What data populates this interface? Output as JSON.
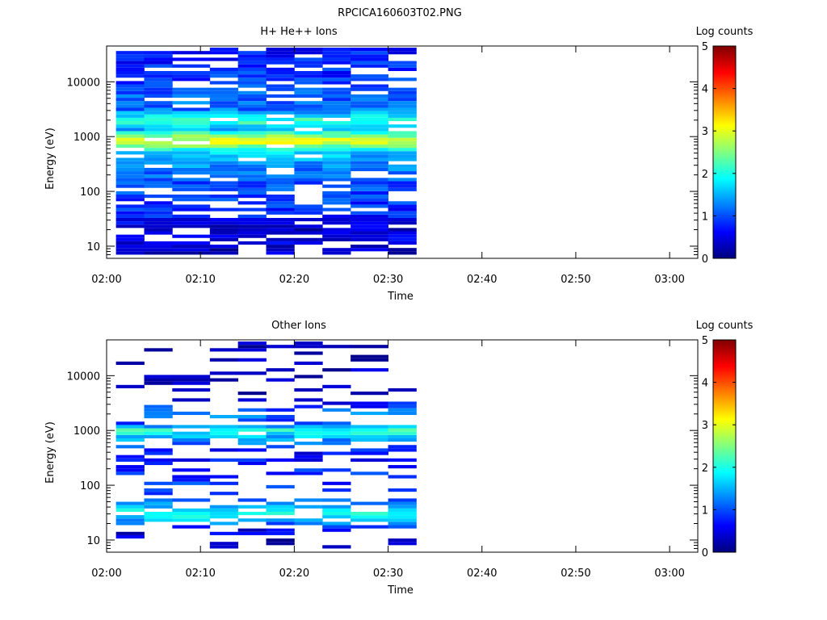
{
  "figure_title": "RPCICA160603T02.PNG",
  "chart_data": [
    {
      "type": "heatmap",
      "title": "H+ He++ Ions",
      "xlabel": "Time",
      "ylabel": "Energy (eV)",
      "x_ticks": [
        "02:00",
        "02:10",
        "02:20",
        "02:30",
        "02:40",
        "02:50",
        "03:00"
      ],
      "y_ticks": [
        "10",
        "100",
        "1000",
        "10000"
      ],
      "y_scale": "log",
      "xlim": [
        "02:00",
        "03:03"
      ],
      "ylim": [
        6,
        45000
      ],
      "colorbar": {
        "label": "Log counts",
        "ticks": [
          "0",
          "1",
          "2",
          "3",
          "4",
          "5"
        ],
        "range": [
          0,
          5
        ]
      },
      "colormap": [
        "#00007f",
        "#0000ff",
        "#0080ff",
        "#00ffff",
        "#80ff80",
        "#ffff00",
        "#ff8000",
        "#ff0000",
        "#7f0000"
      ],
      "time_bins": [
        "02:01",
        "02:04",
        "02:07",
        "02:11",
        "02:14",
        "02:17",
        "02:20",
        "02:23",
        "02:26",
        "02:30"
      ],
      "data_end": "02:33",
      "profile": [
        {
          "e": 8,
          "v": 0.3
        },
        {
          "e": 12,
          "v": 0.5
        },
        {
          "e": 20,
          "v": 0.4
        },
        {
          "e": 40,
          "v": 0.8
        },
        {
          "e": 80,
          "v": 0.9
        },
        {
          "e": 200,
          "v": 1.1
        },
        {
          "e": 500,
          "v": 1.6
        },
        {
          "e": 800,
          "v": 3.0
        },
        {
          "e": 1000,
          "v": 2.6
        },
        {
          "e": 1400,
          "v": 1.4
        },
        {
          "e": 1900,
          "v": 2.2
        },
        {
          "e": 3000,
          "v": 1.2
        },
        {
          "e": 10000,
          "v": 0.9
        },
        {
          "e": 40000,
          "v": 0.7
        }
      ],
      "gap_rate": 0.16
    },
    {
      "type": "heatmap",
      "title": "Other Ions",
      "xlabel": "Time",
      "ylabel": "Energy (eV)",
      "x_ticks": [
        "02:00",
        "02:10",
        "02:20",
        "02:30",
        "02:40",
        "02:50",
        "03:00"
      ],
      "y_ticks": [
        "10",
        "100",
        "1000",
        "10000"
      ],
      "y_scale": "log",
      "xlim": [
        "02:00",
        "03:03"
      ],
      "ylim": [
        6,
        45000
      ],
      "colorbar": {
        "label": "Log counts",
        "ticks": [
          "0",
          "1",
          "2",
          "3",
          "4",
          "5"
        ],
        "range": [
          0,
          5
        ]
      },
      "colormap": [
        "#00007f",
        "#0000ff",
        "#0080ff",
        "#00ffff",
        "#80ff80",
        "#ffff00",
        "#ff8000",
        "#ff0000",
        "#7f0000"
      ],
      "time_bins": [
        "02:01",
        "02:04",
        "02:07",
        "02:11",
        "02:14",
        "02:17",
        "02:20",
        "02:23",
        "02:26",
        "02:30"
      ],
      "data_end": "02:33",
      "profile": [
        {
          "e": 8,
          "v": 0.2
        },
        {
          "e": 15,
          "v": 0.5
        },
        {
          "e": 22,
          "v": 1.4
        },
        {
          "e": 30,
          "v": 2.0
        },
        {
          "e": 40,
          "v": 1.6
        },
        {
          "e": 60,
          "v": 0.9
        },
        {
          "e": 150,
          "v": 0.8
        },
        {
          "e": 400,
          "v": 0.6
        },
        {
          "e": 800,
          "v": 1.6
        },
        {
          "e": 1000,
          "v": 2.1
        },
        {
          "e": 1400,
          "v": 0.7
        },
        {
          "e": 1900,
          "v": 1.3
        },
        {
          "e": 4000,
          "v": 0.3
        },
        {
          "e": 40000,
          "v": 0.2
        }
      ],
      "gap_rate": 0.45
    }
  ]
}
